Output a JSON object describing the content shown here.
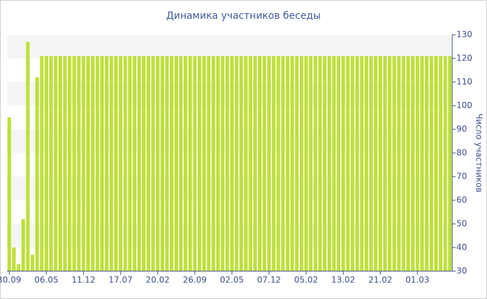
{
  "chart_data": {
    "type": "bar",
    "title": "Динамика участников беседы",
    "y_label": "Число участников",
    "categories": [
      "30.09",
      null,
      null,
      null,
      null,
      null,
      null,
      null,
      "06.05",
      null,
      null,
      null,
      null,
      null,
      null,
      null,
      "11.12",
      null,
      null,
      null,
      null,
      null,
      null,
      null,
      "17.07",
      null,
      null,
      null,
      null,
      null,
      null,
      null,
      "20.02",
      null,
      null,
      null,
      null,
      null,
      null,
      null,
      "26.09",
      null,
      null,
      null,
      null,
      null,
      null,
      null,
      "02.05",
      null,
      null,
      null,
      null,
      null,
      null,
      null,
      "07.12",
      null,
      null,
      null,
      null,
      null,
      null,
      null,
      "05.02",
      null,
      null,
      null,
      null,
      null,
      null,
      null,
      "13.02",
      null,
      null,
      null,
      null,
      null,
      null,
      null,
      "21.02",
      null,
      null,
      null,
      null,
      null,
      null,
      null,
      "01.03",
      null,
      null,
      null,
      null,
      null,
      null,
      null
    ],
    "values": [
      95,
      40,
      33,
      52,
      127,
      37,
      112,
      121,
      121,
      121,
      121,
      121,
      121,
      121,
      121,
      121,
      121,
      121,
      121,
      121,
      121,
      121,
      121,
      121,
      121,
      121,
      121,
      121,
      121,
      121,
      121,
      121,
      121,
      121,
      121,
      121,
      121,
      121,
      121,
      121,
      121,
      121,
      121,
      121,
      121,
      121,
      121,
      121,
      121,
      121,
      121,
      121,
      121,
      121,
      121,
      121,
      121,
      121,
      121,
      121,
      121,
      121,
      121,
      121,
      121,
      121,
      121,
      121,
      121,
      121,
      121,
      121,
      121,
      121,
      121,
      121,
      121,
      121,
      121,
      121,
      121,
      121,
      121,
      121,
      121,
      121,
      121,
      121,
      121,
      121,
      121,
      121,
      121,
      121,
      121,
      121
    ],
    "color": "#bde03a",
    "ylim": [
      30,
      130
    ],
    "yticks": [
      30,
      40,
      50,
      60,
      70,
      80,
      90,
      100,
      110,
      120,
      130
    ],
    "grid": "bands"
  }
}
